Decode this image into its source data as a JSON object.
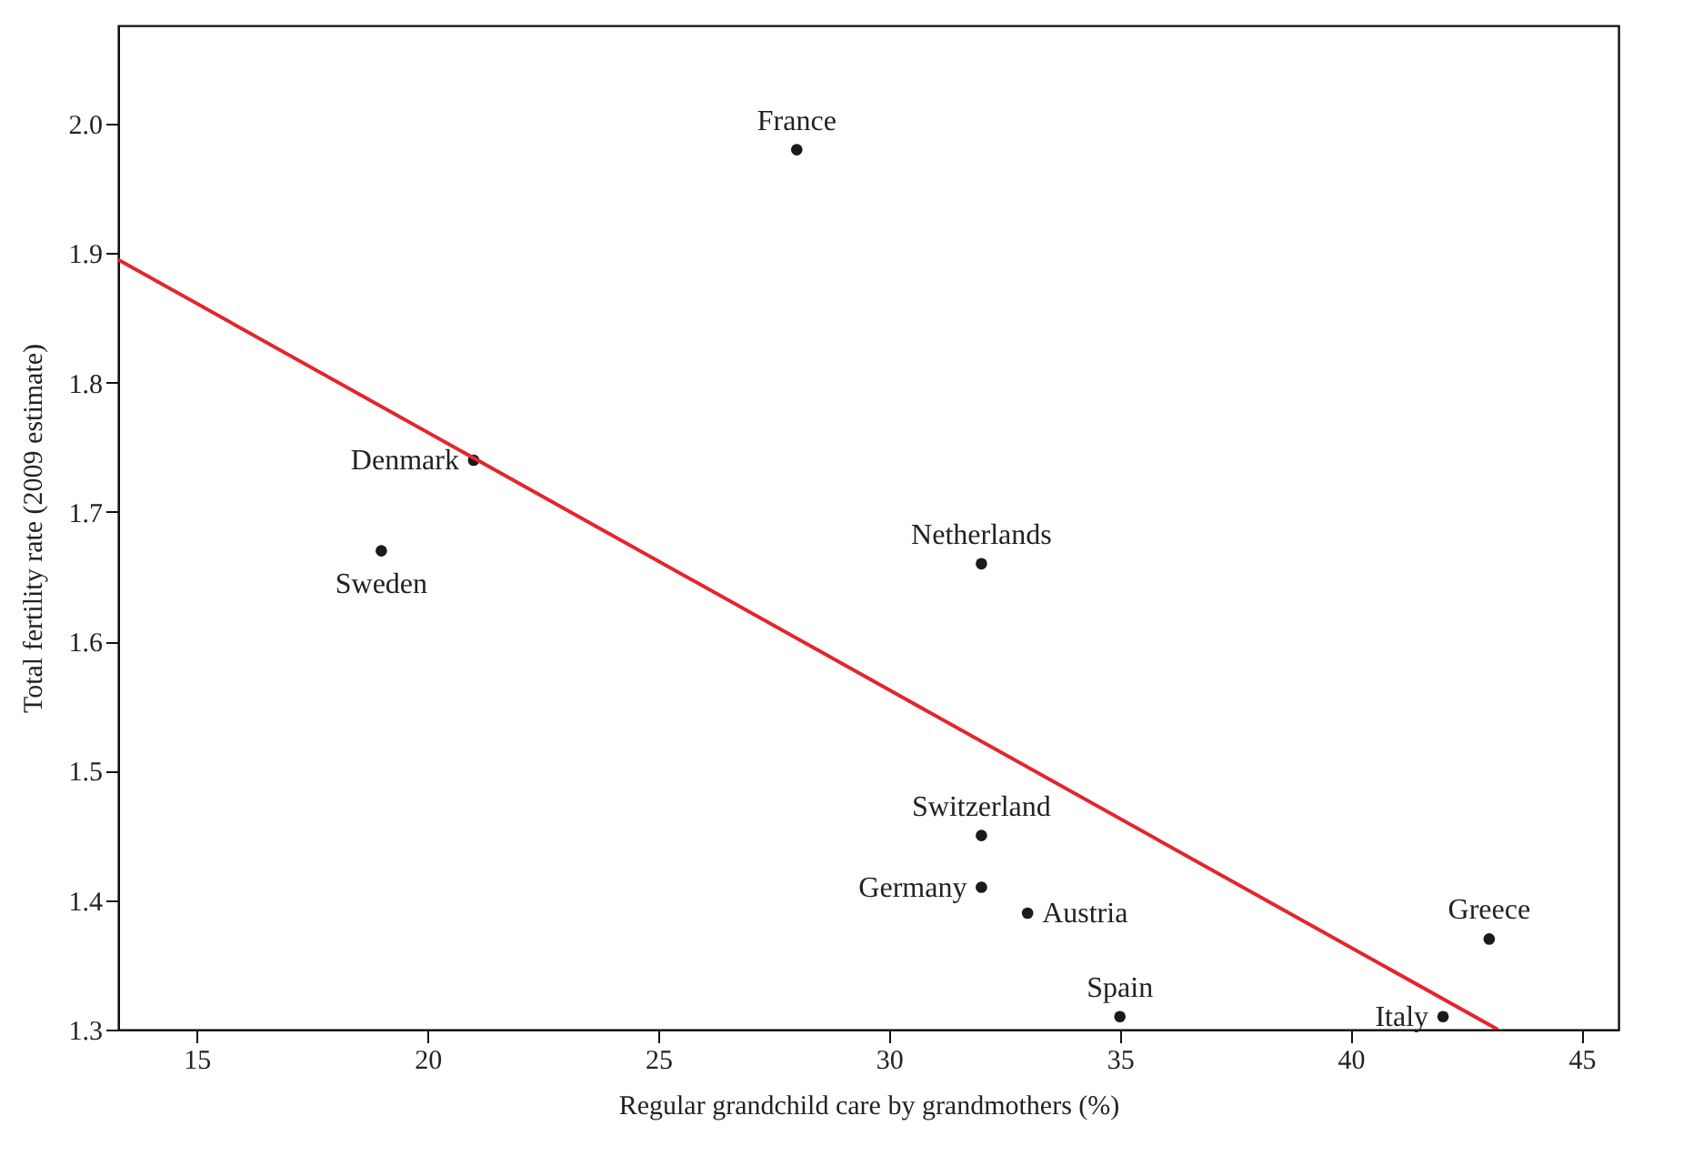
{
  "chart_data": {
    "type": "scatter",
    "xlabel": "Regular grandchild care by grandmothers (%)",
    "ylabel": "Total fertility rate (2009 estimate)",
    "xlim": [
      13.3,
      45.8
    ],
    "xticks": [
      15,
      20,
      25,
      30,
      35,
      40,
      45
    ],
    "ylim": [
      1.3,
      2.076
    ],
    "yticks": [
      1.3,
      1.4,
      1.5,
      1.6,
      1.7,
      1.8,
      1.9,
      {
        "value": 2,
        "label": "2.0"
      }
    ],
    "grid": false,
    "series": [
      {
        "marker": "circle",
        "color": "#1a1a1a",
        "x": [
          28,
          21,
          19,
          32,
          32,
          32,
          33,
          35,
          42,
          43
        ],
        "values": [
          1.98,
          1.74,
          1.67,
          1.66,
          1.45,
          1.41,
          1.39,
          1.31,
          1.31,
          1.37
        ]
      },
      {
        "type": "line",
        "color": "#e3262b",
        "x": [
          13.3,
          43.19
        ],
        "values": [
          1.895,
          1.3
        ]
      }
    ],
    "annotations": [
      {
        "text": "France",
        "x": 28,
        "y": 1.98
      },
      {
        "text": "Denmark",
        "x": 21,
        "y": 1.74
      },
      {
        "text": "Sweden",
        "x": 19,
        "y": 1.67
      },
      {
        "text": "Netherlands",
        "x": 32,
        "y": 1.66
      },
      {
        "text": "Switzerland",
        "x": 32,
        "y": 1.45
      },
      {
        "text": "Germany",
        "x": 32,
        "y": 1.41
      },
      {
        "text": "Austria",
        "x": 33,
        "y": 1.39
      },
      {
        "text": "Spain",
        "x": 35,
        "y": 1.31
      },
      {
        "text": "Italy",
        "x": 42,
        "y": 1.31
      },
      {
        "text": "Greece",
        "x": 43,
        "y": 1.37
      }
    ]
  }
}
